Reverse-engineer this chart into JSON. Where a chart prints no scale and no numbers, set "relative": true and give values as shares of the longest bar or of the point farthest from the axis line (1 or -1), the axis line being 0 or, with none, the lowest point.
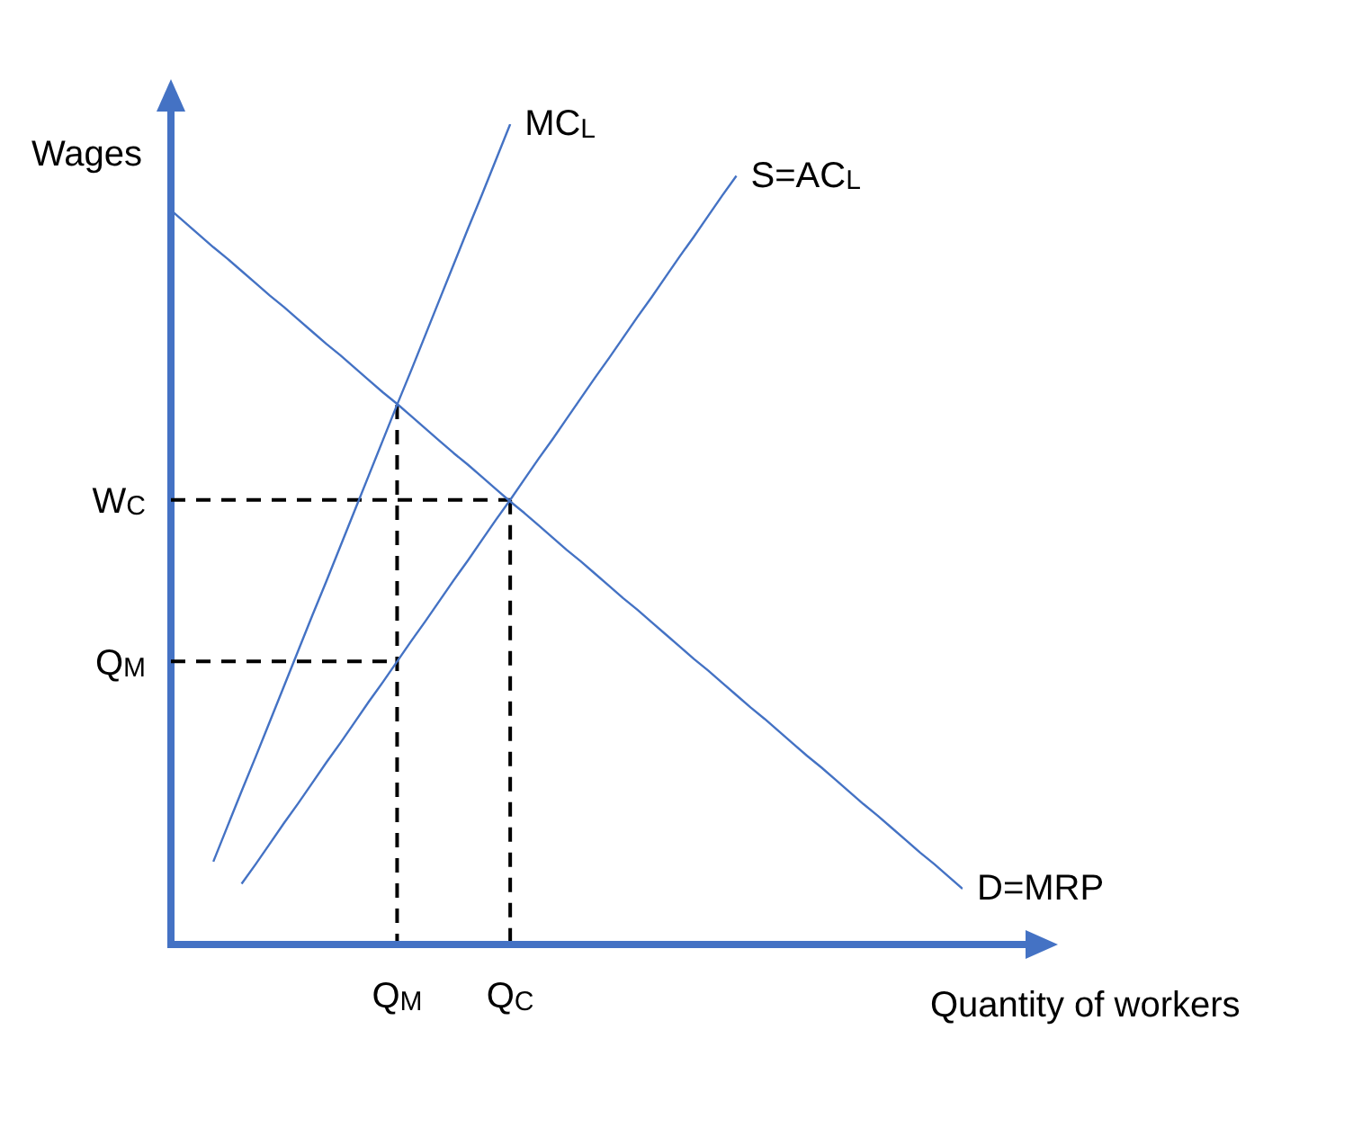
{
  "chart_data": {
    "type": "line",
    "relative": true,
    "xlabel": "Quantity of workers",
    "ylabel": "Wages",
    "categories": [
      null,
      null,
      null,
      null,
      null,
      null,
      null,
      null,
      null,
      null,
      null,
      null,
      null,
      null,
      null,
      null,
      "Q$_{M}$",
      null,
      null,
      null,
      null,
      null,
      null,
      null,
      "Q$_{C}$",
      null,
      null,
      null,
      null,
      null,
      null,
      null,
      null,
      null,
      null,
      null,
      null,
      null,
      null,
      null,
      null,
      null,
      null,
      null,
      null,
      null,
      null,
      null,
      null,
      null,
      null,
      null,
      null,
      null,
      null,
      null,
      null
    ],
    "series": [
      {
        "name": "MC$_{L}$",
        "color": "#4472c4",
        "values": [
          null,
          null,
          null,
          0.101,
          0.144,
          0.187,
          0.229,
          0.272,
          0.315,
          0.358,
          0.401,
          0.443,
          0.486,
          0.529,
          0.572,
          0.615,
          0.658,
          0.7,
          0.743,
          0.786,
          0.829,
          0.872,
          0.914,
          0.957,
          1,
          null,
          null,
          null,
          null,
          null,
          null,
          null,
          null,
          null,
          null,
          null,
          null,
          null,
          null,
          null,
          null,
          null,
          null,
          null,
          null,
          null,
          null,
          null,
          null,
          null,
          null,
          null,
          null,
          null,
          null,
          null,
          null
        ]
      },
      {
        "name": "S=AC$_{L}$",
        "color": "#4472c4",
        "values": [
          null,
          null,
          null,
          null,
          null,
          0.074,
          0.098,
          0.123,
          0.148,
          0.172,
          0.197,
          0.222,
          0.246,
          0.271,
          0.296,
          0.32,
          0.345,
          0.37,
          0.394,
          0.419,
          0.444,
          0.468,
          0.493,
          0.518,
          0.542,
          0.567,
          0.592,
          0.616,
          0.641,
          0.666,
          0.691,
          0.715,
          0.74,
          0.765,
          0.789,
          0.814,
          0.839,
          0.863,
          0.888,
          0.913,
          0.937,
          null,
          null,
          null,
          null,
          null,
          null,
          null,
          null,
          null,
          null,
          null,
          null,
          null,
          null,
          null,
          null
        ]
      },
      {
        "name": "D=MRP",
        "color": "#4472c4",
        "values": [
          0.895,
          0.88,
          0.865,
          0.85,
          0.836,
          0.821,
          0.806,
          0.791,
          0.777,
          0.762,
          0.747,
          0.732,
          0.718,
          0.703,
          0.688,
          0.673,
          0.659,
          0.644,
          0.629,
          0.614,
          0.599,
          0.585,
          0.57,
          0.555,
          0.54,
          0.526,
          0.511,
          0.496,
          0.481,
          0.467,
          0.452,
          0.437,
          0.422,
          0.408,
          0.393,
          0.378,
          0.363,
          0.348,
          0.334,
          0.319,
          0.304,
          0.289,
          0.275,
          0.26,
          0.245,
          0.23,
          0.216,
          0.201,
          0.186,
          0.171,
          0.157,
          0.142,
          0.127,
          0.112,
          0.098,
          0.083,
          0.068
        ]
      },
      {
        "name": "W$_{C}$",
        "color": "#000000",
        "line_style": "dashed",
        "values": [
          0.542,
          0.542,
          0.542,
          0.542,
          0.542,
          0.542,
          0.542,
          0.542,
          0.542,
          0.542,
          0.542,
          0.542,
          0.542,
          0.542,
          0.542,
          0.542,
          0.542,
          0.542,
          0.542,
          0.542,
          0.542,
          0.542,
          0.542,
          0.542,
          0.542,
          null,
          null,
          null,
          null,
          null,
          null,
          null,
          null,
          null,
          null,
          null,
          null,
          null,
          null,
          null,
          null,
          null,
          null,
          null,
          null,
          null,
          null,
          null,
          null,
          null,
          null,
          null,
          null,
          null,
          null,
          null,
          null
        ]
      },
      {
        "name": "Q$_{M}$",
        "color": "#000000",
        "line_style": "dashed",
        "values": [
          0.345,
          0.345,
          0.345,
          0.345,
          0.345,
          0.345,
          0.345,
          0.345,
          0.345,
          0.345,
          0.345,
          0.345,
          0.345,
          0.345,
          0.345,
          0.345,
          0.345,
          null,
          null,
          null,
          null,
          null,
          null,
          null,
          null,
          null,
          null,
          null,
          null,
          null,
          null,
          null,
          null,
          null,
          null,
          null,
          null,
          null,
          null,
          null,
          null,
          null,
          null,
          null,
          null,
          null,
          null,
          null,
          null,
          null,
          null,
          null,
          null,
          null,
          null,
          null,
          null
        ]
      },
      {
        "color": "#000000",
        "line_style": "dashed",
        "x": [
          "Q$_{C}$",
          "Q$_{C}$"
        ],
        "values": [
          0.542,
          0
        ]
      },
      {
        "color": "#000000",
        "line_style": "dashed",
        "x": [
          "Q$_{M}$",
          "Q$_{M}$"
        ],
        "values": [
          0.658,
          0
        ]
      }
    ]
  }
}
